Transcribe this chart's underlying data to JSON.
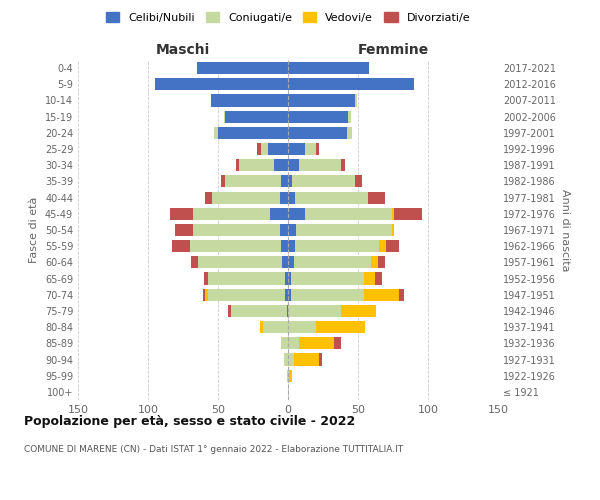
{
  "age_groups": [
    "100+",
    "95-99",
    "90-94",
    "85-89",
    "80-84",
    "75-79",
    "70-74",
    "65-69",
    "60-64",
    "55-59",
    "50-54",
    "45-49",
    "40-44",
    "35-39",
    "30-34",
    "25-29",
    "20-24",
    "15-19",
    "10-14",
    "5-9",
    "0-4"
  ],
  "birth_years": [
    "≤ 1921",
    "1922-1926",
    "1927-1931",
    "1932-1936",
    "1937-1941",
    "1942-1946",
    "1947-1951",
    "1952-1956",
    "1957-1961",
    "1962-1966",
    "1967-1971",
    "1972-1976",
    "1977-1981",
    "1982-1986",
    "1987-1991",
    "1992-1996",
    "1997-2001",
    "2002-2006",
    "2007-2011",
    "2012-2016",
    "2017-2021"
  ],
  "maschi": {
    "celibi": [
      0,
      0,
      0,
      0,
      0,
      1,
      2,
      2,
      4,
      5,
      6,
      13,
      6,
      5,
      10,
      14,
      50,
      45,
      55,
      95,
      65
    ],
    "coniugati": [
      0,
      1,
      3,
      5,
      18,
      40,
      55,
      55,
      60,
      65,
      62,
      55,
      48,
      40,
      25,
      5,
      3,
      1,
      0,
      0,
      0
    ],
    "vedovi": [
      0,
      0,
      0,
      0,
      2,
      0,
      2,
      0,
      0,
      0,
      0,
      0,
      0,
      0,
      0,
      0,
      0,
      0,
      0,
      0,
      0
    ],
    "divorziati": [
      0,
      0,
      0,
      0,
      0,
      2,
      2,
      3,
      5,
      13,
      13,
      16,
      5,
      3,
      2,
      3,
      0,
      0,
      0,
      0,
      0
    ]
  },
  "femmine": {
    "nubili": [
      0,
      0,
      0,
      0,
      0,
      0,
      2,
      2,
      4,
      5,
      6,
      12,
      5,
      3,
      8,
      12,
      42,
      43,
      48,
      90,
      58
    ],
    "coniugate": [
      0,
      1,
      4,
      8,
      20,
      38,
      52,
      52,
      55,
      60,
      68,
      62,
      52,
      45,
      30,
      8,
      4,
      2,
      1,
      0,
      0
    ],
    "vedove": [
      0,
      2,
      18,
      25,
      35,
      25,
      25,
      8,
      5,
      5,
      2,
      2,
      0,
      0,
      0,
      0,
      0,
      0,
      0,
      0,
      0
    ],
    "divorziate": [
      0,
      0,
      2,
      5,
      0,
      0,
      4,
      5,
      5,
      9,
      0,
      20,
      12,
      5,
      3,
      2,
      0,
      0,
      0,
      0,
      0
    ]
  },
  "colors": {
    "celibi_nubili": "#4472c4",
    "coniugati": "#c5d9a0",
    "vedovi": "#ffc000",
    "divorziati": "#c0504d"
  },
  "xlim": 150,
  "title": "Popolazione per età, sesso e stato civile - 2022",
  "subtitle": "COMUNE DI MARENE (CN) - Dati ISTAT 1° gennaio 2022 - Elaborazione TUTTITALIA.IT",
  "ylabel_left": "Fasce di età",
  "ylabel_right": "Anni di nascita",
  "xlabel_maschi": "Maschi",
  "xlabel_femmine": "Femmine",
  "legend_labels": [
    "Celibi/Nubili",
    "Coniugati/e",
    "Vedovi/e",
    "Divorziati/e"
  ]
}
